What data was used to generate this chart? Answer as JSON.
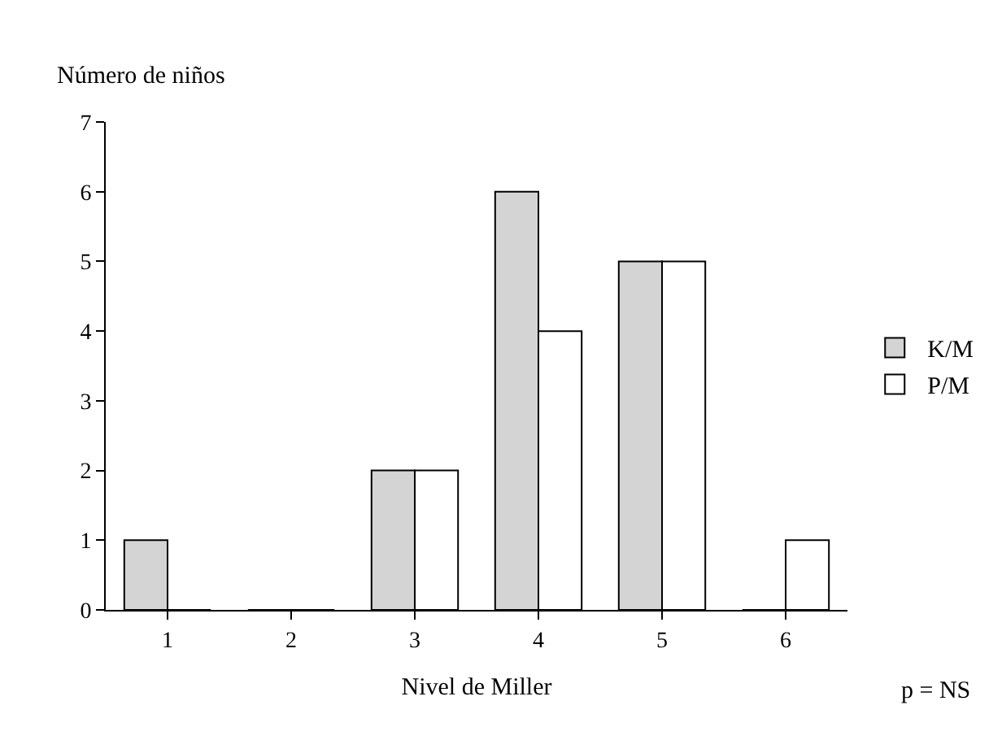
{
  "chart_data": {
    "type": "bar",
    "ylabel": "Número de niños",
    "xlabel": "Nivel de Miller",
    "categories": [
      "1",
      "2",
      "3",
      "4",
      "5",
      "6"
    ],
    "series": [
      {
        "name": "K/M",
        "color": "#d4d4d4",
        "values": [
          1,
          0,
          2,
          6,
          5,
          0
        ]
      },
      {
        "name": "P/M",
        "color": "#ffffff",
        "values": [
          0,
          0,
          2,
          4,
          5,
          1
        ]
      }
    ],
    "ylim": [
      0,
      7
    ],
    "yticks": [
      0,
      1,
      2,
      3,
      4,
      5,
      6,
      7
    ],
    "grid": false,
    "legend": "right",
    "annotations": [
      "p = NS"
    ]
  }
}
